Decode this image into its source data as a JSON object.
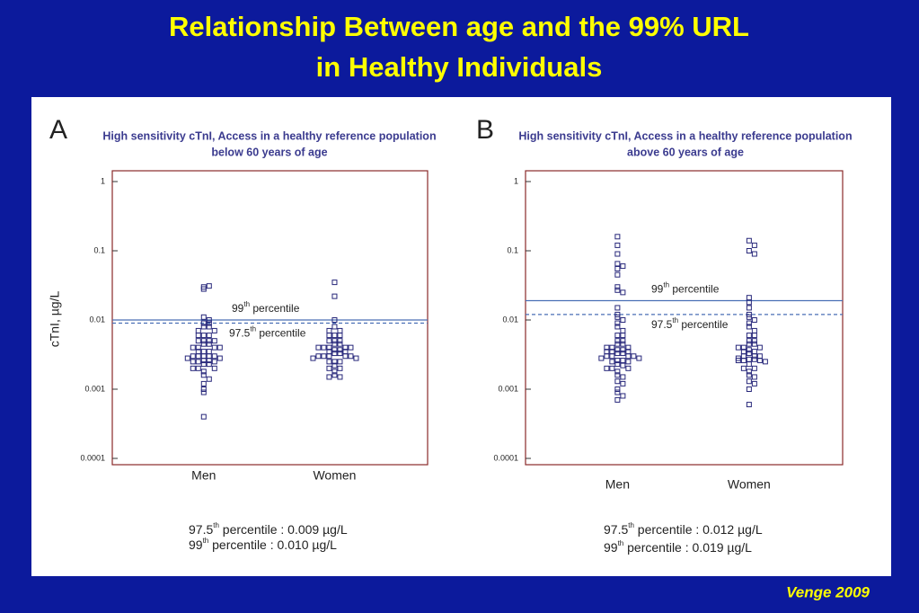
{
  "title_lines": [
    "Relationship Between age and the 99% URL",
    "in Healthy Individuals"
  ],
  "credit": "Venge 2009",
  "chart_data": [
    {
      "type": "scatter",
      "panel": "A",
      "title_lines": [
        "High sensitivity cTnI, Access in a healthy reference population",
        "below 60 years of age"
      ],
      "ylabel": "cTnI, µg/L",
      "log_y": true,
      "ylim": [
        0.0001,
        1
      ],
      "yticks": [
        0.0001,
        0.001,
        0.01,
        0.1,
        1
      ],
      "categories": [
        "Men",
        "Women"
      ],
      "color": "#27277a",
      "values": [
        [
          0.03,
          0.028,
          0.031,
          0.011,
          0.01,
          0.009,
          0.009,
          0.008,
          0.008,
          0.007,
          0.007,
          0.006,
          0.006,
          0.006,
          0.005,
          0.005,
          0.005,
          0.005,
          0.0045,
          0.0045,
          0.004,
          0.004,
          0.004,
          0.004,
          0.0035,
          0.0035,
          0.0035,
          0.003,
          0.003,
          0.003,
          0.003,
          0.003,
          0.0028,
          0.0028,
          0.0026,
          0.0026,
          0.0025,
          0.0025,
          0.0025,
          0.0023,
          0.0023,
          0.002,
          0.002,
          0.002,
          0.0018,
          0.0016,
          0.0014,
          0.0012,
          0.001,
          0.0009,
          0.0004
        ],
        [
          0.035,
          0.022,
          0.01,
          0.008,
          0.007,
          0.007,
          0.006,
          0.006,
          0.006,
          0.005,
          0.005,
          0.005,
          0.0045,
          0.0045,
          0.004,
          0.004,
          0.004,
          0.004,
          0.004,
          0.0037,
          0.0037,
          0.0035,
          0.0035,
          0.0033,
          0.0033,
          0.003,
          0.003,
          0.003,
          0.003,
          0.003,
          0.0028,
          0.0028,
          0.0025,
          0.0025,
          0.0025,
          0.0022,
          0.002,
          0.002,
          0.0018,
          0.0016,
          0.0015,
          0.0015
        ]
      ],
      "reference_lines": [
        {
          "lead": "99",
          "sup": "th",
          "rest": " percentile",
          "value": 0.01,
          "color": "#4a6fb5",
          "dashed": false
        },
        {
          "lead": "97.5",
          "sup": "th",
          "rest": " percentile",
          "value": 0.009,
          "color": "#4a6fb5",
          "dashed": true
        }
      ],
      "notes": [
        {
          "lead": "97.5",
          "sup": "th",
          "rest": " percentile :  0.009 µg/L"
        },
        {
          "lead": "99",
          "sup": "th",
          "rest": " percentile     : 0.010 µg/L"
        }
      ]
    },
    {
      "type": "scatter",
      "panel": "B",
      "title_lines": [
        "High sensitivity cTnI, Access in a healthy reference population",
        "above 60 years of age"
      ],
      "log_y": true,
      "ylim": [
        0.0001,
        1
      ],
      "yticks": [
        0.0001,
        0.001,
        0.01,
        0.1,
        1
      ],
      "categories": [
        "Men",
        "Women"
      ],
      "color": "#27277a",
      "values": [
        [
          0.16,
          0.12,
          0.09,
          0.065,
          0.06,
          0.055,
          0.045,
          0.03,
          0.027,
          0.025,
          0.015,
          0.012,
          0.011,
          0.01,
          0.009,
          0.008,
          0.007,
          0.006,
          0.006,
          0.005,
          0.005,
          0.0045,
          0.0045,
          0.004,
          0.004,
          0.004,
          0.0037,
          0.0037,
          0.0035,
          0.0035,
          0.0035,
          0.0033,
          0.0033,
          0.003,
          0.003,
          0.003,
          0.003,
          0.0028,
          0.0028,
          0.0026,
          0.0026,
          0.0025,
          0.0025,
          0.0023,
          0.0022,
          0.002,
          0.002,
          0.002,
          0.0018,
          0.0016,
          0.0015,
          0.0013,
          0.0012,
          0.001,
          0.0009,
          0.0008,
          0.0007
        ],
        [
          0.14,
          0.12,
          0.1,
          0.09,
          0.021,
          0.018,
          0.015,
          0.012,
          0.011,
          0.01,
          0.009,
          0.008,
          0.007,
          0.006,
          0.006,
          0.005,
          0.005,
          0.0045,
          0.0045,
          0.004,
          0.004,
          0.004,
          0.0037,
          0.0035,
          0.0035,
          0.0033,
          0.003,
          0.003,
          0.003,
          0.0028,
          0.0027,
          0.0027,
          0.0026,
          0.0026,
          0.0026,
          0.0025,
          0.0023,
          0.002,
          0.002,
          0.0018,
          0.0016,
          0.0015,
          0.0013,
          0.0012,
          0.001,
          0.0006
        ]
      ],
      "reference_lines": [
        {
          "lead": "99",
          "sup": "th",
          "rest": " percentile",
          "value": 0.019,
          "color": "#4a6fb5",
          "dashed": false
        },
        {
          "lead": "97.5",
          "sup": "th",
          "rest": " percentile",
          "value": 0.012,
          "color": "#4a6fb5",
          "dashed": true
        }
      ],
      "notes": [
        {
          "lead": "97.5",
          "sup": "th",
          "rest": " percentile :  0.012 µg/L"
        },
        {
          "lead": "99",
          "sup": "th",
          "rest": " percentile     : 0.019 µg/L"
        }
      ]
    }
  ]
}
